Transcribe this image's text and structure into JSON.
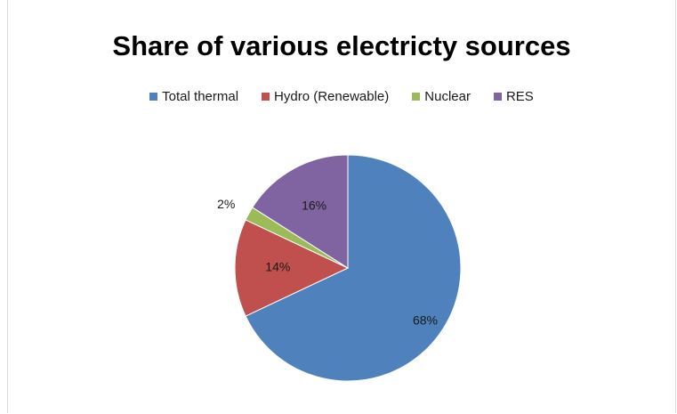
{
  "chart_data": {
    "type": "pie",
    "title": "Share of various electricty sources",
    "legend_position": "top",
    "slices": [
      {
        "label": "Total thermal",
        "value": 68,
        "label_text": "68%",
        "color": "#4F81BD"
      },
      {
        "label": "Hydro (Renewable)",
        "value": 14,
        "label_text": "14%",
        "color": "#C0504D"
      },
      {
        "label": "Nuclear",
        "value": 2,
        "label_text": "2%",
        "color": "#9BBB59"
      },
      {
        "label": "RES",
        "value": 16,
        "label_text": "16%",
        "color": "#8064A2"
      }
    ]
  }
}
